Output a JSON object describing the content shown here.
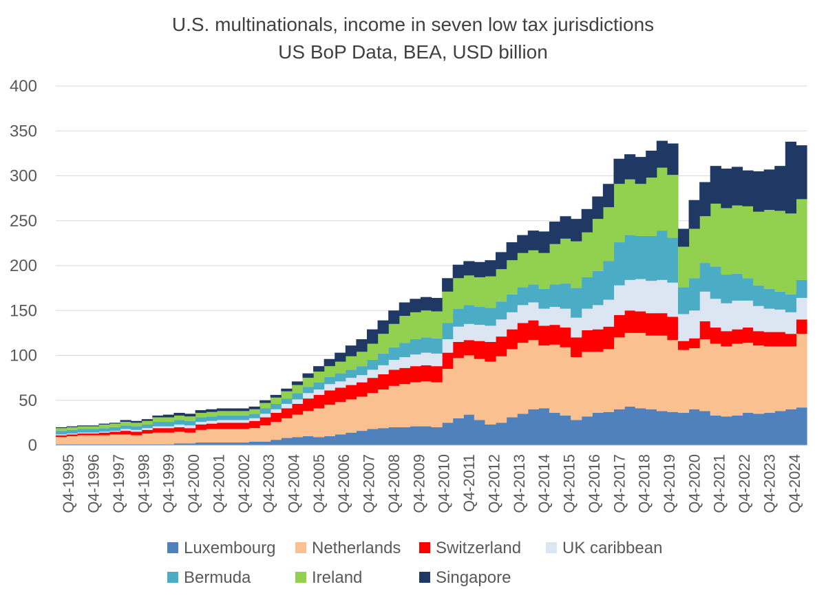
{
  "chart_data": {
    "type": "stacked-area",
    "title": "U.S. multinationals, income in seven low tax jurisdictions",
    "subtitle": "US BoP Data, BEA, USD billion",
    "ylim": [
      0,
      400
    ],
    "yticks": [
      0,
      50,
      100,
      150,
      200,
      250,
      300,
      350,
      400
    ],
    "xlabels": [
      "Q4-1995",
      "Q4-1996",
      "Q4-1997",
      "Q4-1998",
      "Q4-1999",
      "Q4-2000",
      "Q4-2001",
      "Q4-2002",
      "Q4-2003",
      "Q4-2004",
      "Q4-2005",
      "Q4-2006",
      "Q4-2007",
      "Q4-2008",
      "Q4-2009",
      "Q4-2010",
      "Q4-2011",
      "Q4-2012",
      "Q4-2013",
      "Q4-2014",
      "Q4-2015",
      "Q4-2016",
      "Q4-2017",
      "Q4-2018",
      "Q4-2019",
      "Q4-2020",
      "Q4-2021",
      "Q4-2022",
      "Q4-2023",
      "Q4-2024"
    ],
    "grid": true,
    "legend_position": "bottom",
    "series": [
      {
        "name": "Luxembourg",
        "color": "#4F81BD",
        "values": [
          1,
          1,
          1,
          1,
          1,
          1,
          1,
          1,
          1,
          1,
          1,
          2,
          2,
          3,
          3,
          3,
          3,
          3,
          4,
          4,
          6,
          8,
          9,
          10,
          9,
          10,
          12,
          14,
          16,
          18,
          19,
          20,
          20,
          21,
          21,
          20,
          25,
          30,
          34,
          28,
          23,
          25,
          31,
          35,
          40,
          41,
          36,
          33,
          28,
          32,
          36,
          37,
          40,
          43,
          41,
          40,
          38,
          37,
          36,
          40,
          38,
          33,
          32,
          33,
          36,
          35,
          36,
          38,
          40,
          42
        ]
      },
      {
        "name": "Netherlands",
        "color": "#FAC090",
        "values": [
          8,
          9,
          10,
          10,
          10,
          11,
          11,
          10,
          12,
          13,
          13,
          13,
          12,
          14,
          15,
          15,
          15,
          15,
          15,
          18,
          20,
          22,
          25,
          28,
          32,
          35,
          36,
          37,
          38,
          40,
          43,
          46,
          48,
          49,
          50,
          50,
          60,
          67,
          66,
          68,
          70,
          74,
          76,
          79,
          77,
          70,
          76,
          76,
          70,
          72,
          68,
          70,
          80,
          82,
          84,
          82,
          84,
          80,
          70,
          68,
          80,
          80,
          78,
          80,
          78,
          76,
          74,
          72,
          70,
          82
        ]
      },
      {
        "name": "Switzerland",
        "color": "#FF0000",
        "values": [
          2,
          2,
          2,
          2,
          3,
          3,
          4,
          4,
          4,
          5,
          5,
          5,
          5,
          6,
          6,
          7,
          7,
          7,
          8,
          9,
          10,
          11,
          12,
          14,
          15,
          16,
          16,
          16,
          16,
          17,
          17,
          18,
          18,
          18,
          18,
          18,
          18,
          18,
          17,
          20,
          22,
          22,
          22,
          22,
          22,
          22,
          22,
          22,
          22,
          24,
          25,
          25,
          25,
          25,
          24,
          25,
          25,
          26,
          10,
          11,
          20,
          18,
          17,
          16,
          17,
          16,
          16,
          16,
          14,
          16
        ]
      },
      {
        "name": "UK caribbean",
        "color": "#DCE6F2",
        "values": [
          1,
          1,
          1,
          1,
          1,
          1,
          2,
          2,
          2,
          2,
          2,
          3,
          3,
          3,
          3,
          3,
          3,
          3,
          3,
          4,
          4,
          5,
          5,
          6,
          6,
          7,
          7,
          8,
          8,
          9,
          10,
          11,
          12,
          13,
          14,
          14,
          15,
          17,
          18,
          18,
          18,
          19,
          19,
          20,
          20,
          19,
          20,
          21,
          22,
          24,
          27,
          30,
          33,
          34,
          36,
          36,
          37,
          38,
          30,
          31,
          33,
          32,
          31,
          32,
          30,
          28,
          26,
          25,
          24,
          24
        ]
      },
      {
        "name": "Bermuda",
        "color": "#4BACC6",
        "values": [
          4,
          4,
          4,
          4,
          4,
          4,
          4,
          4,
          4,
          5,
          5,
          5,
          5,
          5,
          5,
          5,
          5,
          5,
          5,
          6,
          6,
          6,
          7,
          7,
          8,
          8,
          9,
          9,
          10,
          11,
          13,
          14,
          16,
          17,
          17,
          17,
          18,
          20,
          21,
          20,
          20,
          20,
          20,
          20,
          20,
          22,
          25,
          28,
          33,
          35,
          38,
          43,
          48,
          50,
          48,
          50,
          55,
          50,
          30,
          36,
          32,
          36,
          32,
          30,
          25,
          23,
          22,
          20,
          20,
          20
        ]
      },
      {
        "name": "Ireland",
        "color": "#92D050",
        "values": [
          3,
          3,
          3,
          3,
          4,
          4,
          4,
          4,
          4,
          5,
          5,
          5,
          5,
          5,
          5,
          5,
          5,
          5,
          5,
          6,
          7,
          8,
          9,
          10,
          12,
          12,
          13,
          15,
          16,
          18,
          22,
          26,
          30,
          30,
          30,
          30,
          35,
          34,
          33,
          33,
          35,
          36,
          38,
          38,
          38,
          40,
          45,
          50,
          52,
          50,
          58,
          60,
          65,
          62,
          58,
          65,
          70,
          70,
          45,
          55,
          52,
          70,
          74,
          76,
          80,
          82,
          88,
          90,
          90,
          90
        ]
      },
      {
        "name": "Singapore",
        "color": "#1F3864",
        "values": [
          1,
          1,
          1,
          1,
          1,
          1,
          2,
          2,
          2,
          2,
          3,
          3,
          3,
          3,
          3,
          3,
          3,
          3,
          3,
          3,
          3,
          3,
          4,
          5,
          6,
          8,
          10,
          12,
          14,
          16,
          15,
          15,
          15,
          15,
          15,
          15,
          15,
          15,
          16,
          17,
          18,
          19,
          20,
          20,
          22,
          24,
          25,
          25,
          25,
          26,
          25,
          26,
          28,
          28,
          30,
          30,
          30,
          35,
          20,
          32,
          38,
          42,
          44,
          43,
          40,
          45,
          45,
          50,
          80,
          60
        ]
      }
    ]
  },
  "legend": {
    "items": [
      "Luxembourg",
      "Netherlands",
      "Switzerland",
      "UK caribbean",
      "Bermuda",
      "Ireland",
      "Singapore"
    ]
  }
}
